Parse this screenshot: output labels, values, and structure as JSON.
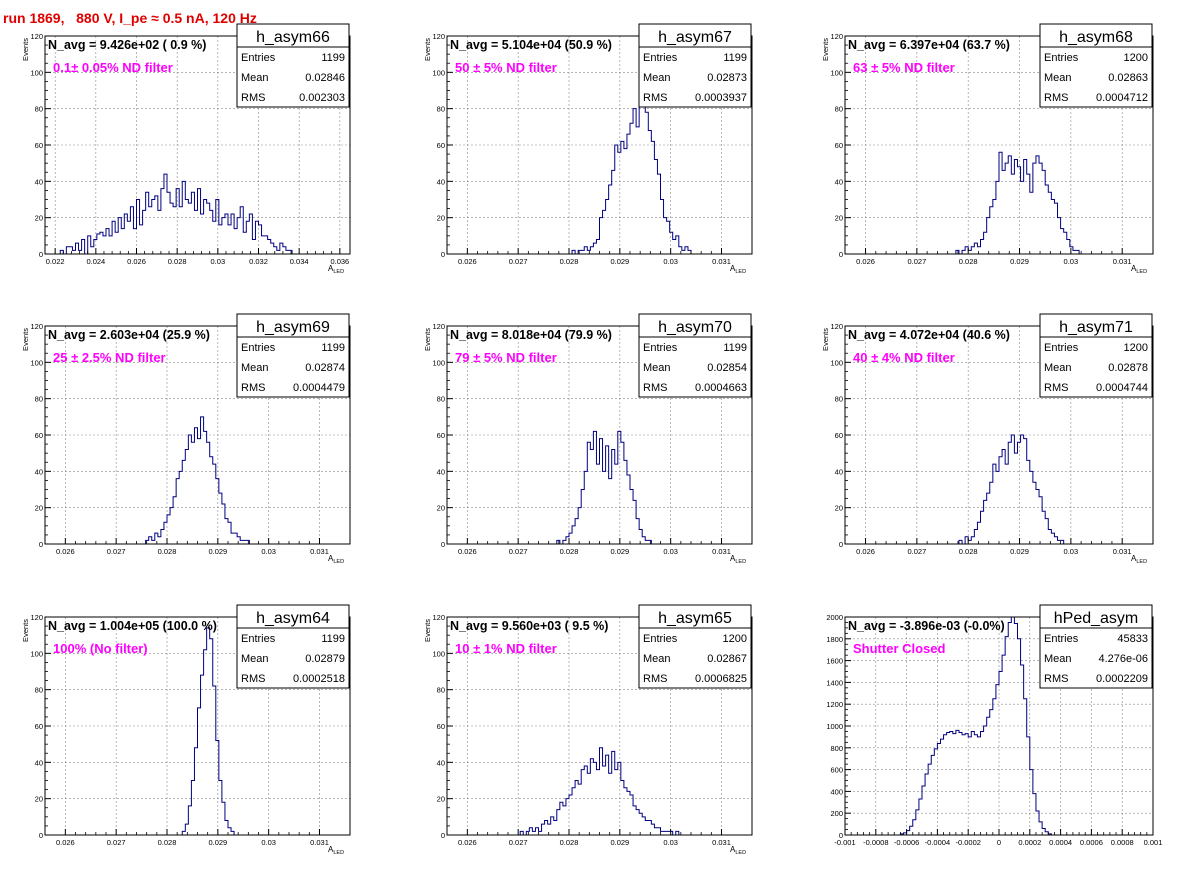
{
  "page_title": "run 1869,   880 V, I_pe ≈ 0.5 nA, 120 Hz",
  "colors": {
    "histogram": "#000080",
    "annotation": "#ff00ff",
    "title": "#e00000",
    "frame": "#000000"
  },
  "chart_data": [
    {
      "type": "bar",
      "name": "h_asym66",
      "title": "N_avg = 9.426e+02 ( 0.9 %)",
      "annotation": "0.1± 0.05% ND filter",
      "stats": {
        "Entries": "1199",
        "Mean": "0.02846",
        "RMS": "0.002303"
      },
      "xlabel": "A",
      "xlabel_sub": "LED",
      "ylabel": "Events",
      "xlim": [
        0.0215,
        0.0365
      ],
      "ylim": [
        0,
        120
      ],
      "xticks": [
        "0.022",
        "0.024",
        "0.026",
        "0.028",
        "0.03",
        "0.032",
        "0.034",
        "0.036"
      ],
      "xtick_values": [
        0.022,
        0.024,
        0.026,
        0.028,
        0.03,
        0.032,
        0.034,
        0.036
      ],
      "yticks": [
        "0",
        "20",
        "40",
        "60",
        "80",
        "100",
        "120"
      ],
      "ytick_values": [
        0,
        20,
        40,
        60,
        80,
        100,
        120
      ],
      "bin_start": 0.0215,
      "bin_width": 0.00015,
      "values": [
        0,
        0,
        0,
        0,
        0,
        2,
        0,
        4,
        4,
        2,
        6,
        2,
        8,
        0,
        10,
        4,
        8,
        11,
        12,
        10,
        14,
        10,
        18,
        12,
        20,
        14,
        22,
        18,
        26,
        14,
        30,
        16,
        24,
        34,
        26,
        30,
        32,
        24,
        36,
        44,
        34,
        28,
        26,
        36,
        26,
        40,
        30,
        28,
        34,
        24,
        36,
        22,
        30,
        28,
        24,
        18,
        30,
        16,
        20,
        22,
        16,
        22,
        14,
        20,
        26,
        12,
        18,
        22,
        8,
        18,
        16,
        10,
        10,
        8,
        6,
        4,
        2,
        6,
        4,
        2,
        2,
        0,
        0,
        0,
        0,
        0,
        0,
        0,
        0,
        0,
        0,
        0,
        0,
        0,
        0,
        0,
        0,
        0,
        0,
        0
      ]
    },
    {
      "type": "bar",
      "name": "h_asym67",
      "title": "N_avg = 5.104e+04 (50.9 %)",
      "annotation": "50 ± 5% ND filter",
      "stats": {
        "Entries": "1199",
        "Mean": "0.02873",
        "RMS": "0.0003937"
      },
      "xlabel": "A",
      "xlabel_sub": "LED",
      "ylabel": "Events",
      "xlim": [
        0.0256,
        0.0316
      ],
      "ylim": [
        0,
        120
      ],
      "xticks": [
        "0.026",
        "0.027",
        "0.028",
        "0.029",
        "0.03",
        "0.031"
      ],
      "xtick_values": [
        0.026,
        0.027,
        0.028,
        0.029,
        0.03,
        0.031
      ],
      "yticks": [
        "0",
        "20",
        "40",
        "60",
        "80",
        "100",
        "120"
      ],
      "ytick_values": [
        0,
        20,
        40,
        60,
        80,
        100,
        120
      ],
      "bin_start": 0.0256,
      "bin_width": 6e-05,
      "values": [
        0,
        0,
        0,
        0,
        0,
        0,
        0,
        0,
        0,
        0,
        0,
        0,
        0,
        0,
        0,
        0,
        0,
        0,
        0,
        0,
        0,
        0,
        0,
        0,
        0,
        0,
        0,
        0,
        0,
        0,
        0,
        0,
        0,
        0,
        0,
        0,
        0,
        0,
        0,
        0,
        0,
        2,
        0,
        2,
        2,
        4,
        2,
        4,
        6,
        8,
        20,
        24,
        30,
        38,
        46,
        60,
        56,
        62,
        58,
        66,
        72,
        80,
        70,
        86,
        100,
        78,
        68,
        62,
        52,
        44,
        30,
        20,
        18,
        12,
        8,
        10,
        4,
        2,
        4,
        2,
        0,
        0,
        0,
        0,
        0,
        0,
        0,
        0,
        0,
        0,
        0,
        0,
        0,
        0,
        0,
        0,
        0,
        0,
        0,
        0
      ]
    },
    {
      "type": "bar",
      "name": "h_asym68",
      "title": "N_avg = 6.397e+04 (63.7 %)",
      "annotation": "63 ± 5% ND filter",
      "stats": {
        "Entries": "1200",
        "Mean": "0.02863",
        "RMS": "0.0004712"
      },
      "xlabel": "A",
      "xlabel_sub": "LED",
      "ylabel": "Events",
      "xlim": [
        0.0256,
        0.0316
      ],
      "ylim": [
        0,
        120
      ],
      "xticks": [
        "0.026",
        "0.027",
        "0.028",
        "0.029",
        "0.03",
        "0.031"
      ],
      "xtick_values": [
        0.026,
        0.027,
        0.028,
        0.029,
        0.03,
        0.031
      ],
      "yticks": [
        "0",
        "20",
        "40",
        "60",
        "80",
        "100",
        "120"
      ],
      "ytick_values": [
        0,
        20,
        40,
        60,
        80,
        100,
        120
      ],
      "bin_start": 0.0256,
      "bin_width": 6e-05,
      "values": [
        0,
        0,
        0,
        0,
        0,
        0,
        0,
        0,
        0,
        0,
        0,
        0,
        0,
        0,
        0,
        0,
        0,
        0,
        0,
        0,
        0,
        0,
        0,
        0,
        0,
        0,
        0,
        0,
        0,
        0,
        0,
        0,
        0,
        0,
        0,
        0,
        2,
        0,
        2,
        4,
        2,
        4,
        6,
        4,
        8,
        12,
        20,
        26,
        30,
        40,
        56,
        46,
        50,
        54,
        44,
        52,
        48,
        40,
        52,
        44,
        34,
        50,
        54,
        50,
        46,
        38,
        34,
        30,
        28,
        20,
        14,
        12,
        8,
        4,
        2,
        2,
        0,
        0,
        0,
        0,
        0,
        0,
        0,
        0,
        0,
        0,
        0,
        0,
        0,
        0,
        0,
        0,
        0,
        0,
        0,
        0,
        0,
        0,
        0,
        0
      ]
    },
    {
      "type": "bar",
      "name": "h_asym69",
      "title": "N_avg = 2.603e+04 (25.9 %)",
      "annotation": "25 ± 2.5% ND filter",
      "stats": {
        "Entries": "1199",
        "Mean": "0.02874",
        "RMS": "0.0004479"
      },
      "xlabel": "A",
      "xlabel_sub": "LED",
      "ylabel": "Events",
      "xlim": [
        0.0256,
        0.0316
      ],
      "ylim": [
        0,
        120
      ],
      "xticks": [
        "0.026",
        "0.027",
        "0.028",
        "0.029",
        "0.03",
        "0.031"
      ],
      "xtick_values": [
        0.026,
        0.027,
        0.028,
        0.029,
        0.03,
        0.031
      ],
      "yticks": [
        "0",
        "20",
        "40",
        "60",
        "80",
        "100",
        "120"
      ],
      "ytick_values": [
        0,
        20,
        40,
        60,
        80,
        100,
        120
      ],
      "bin_start": 0.0256,
      "bin_width": 6e-05,
      "values": [
        0,
        0,
        0,
        0,
        0,
        0,
        0,
        0,
        0,
        0,
        0,
        0,
        0,
        0,
        0,
        0,
        0,
        0,
        0,
        0,
        0,
        0,
        0,
        0,
        0,
        0,
        0,
        0,
        0,
        0,
        0,
        0,
        0,
        2,
        4,
        2,
        6,
        4,
        8,
        12,
        16,
        20,
        26,
        36,
        40,
        46,
        52,
        60,
        56,
        64,
        58,
        70,
        62,
        56,
        48,
        44,
        36,
        28,
        22,
        14,
        12,
        6,
        6,
        4,
        2,
        2,
        2,
        0,
        0,
        0,
        0,
        0,
        0,
        0,
        0,
        0,
        0,
        0,
        0,
        0,
        0,
        0,
        0,
        0,
        0,
        0,
        0,
        0,
        0,
        0,
        0,
        0,
        0,
        0,
        0,
        0,
        0,
        0,
        0,
        0
      ]
    },
    {
      "type": "bar",
      "name": "h_asym70",
      "title": "N_avg = 8.018e+04 (79.9 %)",
      "annotation": "79 ± 5% ND filter",
      "stats": {
        "Entries": "1199",
        "Mean": "0.02854",
        "RMS": "0.0004663"
      },
      "xlabel": "A",
      "xlabel_sub": "LED",
      "ylabel": "Events",
      "xlim": [
        0.0256,
        0.0316
      ],
      "ylim": [
        0,
        120
      ],
      "xticks": [
        "0.026",
        "0.027",
        "0.028",
        "0.029",
        "0.03",
        "0.031"
      ],
      "xtick_values": [
        0.026,
        0.027,
        0.028,
        0.029,
        0.03,
        0.031
      ],
      "yticks": [
        "0",
        "20",
        "40",
        "60",
        "80",
        "100",
        "120"
      ],
      "ytick_values": [
        0,
        20,
        40,
        60,
        80,
        100,
        120
      ],
      "bin_start": 0.0256,
      "bin_width": 6e-05,
      "values": [
        0,
        0,
        0,
        0,
        0,
        0,
        0,
        0,
        0,
        0,
        0,
        0,
        0,
        0,
        0,
        0,
        0,
        0,
        0,
        0,
        0,
        0,
        0,
        0,
        0,
        0,
        0,
        0,
        0,
        0,
        0,
        0,
        0,
        0,
        0,
        0,
        2,
        0,
        2,
        4,
        6,
        10,
        14,
        20,
        30,
        40,
        56,
        52,
        62,
        44,
        58,
        40,
        54,
        36,
        52,
        44,
        62,
        56,
        46,
        38,
        30,
        24,
        14,
        8,
        4,
        2,
        2,
        0,
        0,
        0,
        0,
        0,
        0,
        0,
        0,
        0,
        0,
        0,
        0,
        0,
        0,
        0,
        0,
        0,
        0,
        0,
        0,
        0,
        0,
        0,
        0,
        0,
        0,
        0,
        0,
        0,
        0,
        0,
        0,
        0
      ]
    },
    {
      "type": "bar",
      "name": "h_asym71",
      "title": "N_avg = 4.072e+04 (40.6 %)",
      "annotation": "40 ± 4% ND filter",
      "stats": {
        "Entries": "1200",
        "Mean": "0.02878",
        "RMS": "0.0004744"
      },
      "xlabel": "A",
      "xlabel_sub": "LED",
      "ylabel": "Events",
      "xlim": [
        0.0256,
        0.0316
      ],
      "ylim": [
        0,
        120
      ],
      "xticks": [
        "0.026",
        "0.027",
        "0.028",
        "0.029",
        "0.03",
        "0.031"
      ],
      "xtick_values": [
        0.026,
        0.027,
        0.028,
        0.029,
        0.03,
        0.031
      ],
      "yticks": [
        "0",
        "20",
        "40",
        "60",
        "80",
        "100",
        "120"
      ],
      "ytick_values": [
        0,
        20,
        40,
        60,
        80,
        100,
        120
      ],
      "bin_start": 0.0256,
      "bin_width": 6e-05,
      "values": [
        0,
        0,
        0,
        0,
        0,
        0,
        0,
        0,
        0,
        0,
        0,
        0,
        0,
        0,
        0,
        0,
        0,
        0,
        0,
        0,
        0,
        0,
        0,
        0,
        0,
        0,
        0,
        0,
        0,
        0,
        0,
        0,
        0,
        0,
        0,
        0,
        0,
        2,
        0,
        4,
        2,
        4,
        8,
        12,
        18,
        24,
        28,
        34,
        44,
        40,
        48,
        52,
        44,
        56,
        60,
        50,
        56,
        60,
        58,
        46,
        40,
        34,
        30,
        26,
        18,
        14,
        8,
        6,
        4,
        2,
        2,
        0,
        0,
        0,
        0,
        0,
        0,
        0,
        0,
        0,
        0,
        0,
        0,
        0,
        0,
        0,
        0,
        0,
        0,
        0,
        0,
        0,
        0,
        0,
        0,
        0,
        0,
        0,
        0,
        0
      ]
    },
    {
      "type": "bar",
      "name": "h_asym64",
      "title": "N_avg = 1.004e+05 (100.0 %)",
      "annotation": "100% (No filter)",
      "stats": {
        "Entries": "1199",
        "Mean": "0.02879",
        "RMS": "0.0002518"
      },
      "xlabel": "A",
      "xlabel_sub": "LED",
      "ylabel": "Events",
      "xlim": [
        0.0256,
        0.0316
      ],
      "ylim": [
        0,
        120
      ],
      "xticks": [
        "0.026",
        "0.027",
        "0.028",
        "0.029",
        "0.03",
        "0.031"
      ],
      "xtick_values": [
        0.026,
        0.027,
        0.028,
        0.029,
        0.03,
        0.031
      ],
      "yticks": [
        "0",
        "20",
        "40",
        "60",
        "80",
        "100",
        "120"
      ],
      "ytick_values": [
        0,
        20,
        40,
        60,
        80,
        100,
        120
      ],
      "bin_start": 0.0256,
      "bin_width": 6e-05,
      "values": [
        0,
        0,
        0,
        0,
        0,
        0,
        0,
        0,
        0,
        0,
        0,
        0,
        0,
        0,
        0,
        0,
        0,
        0,
        0,
        0,
        0,
        0,
        0,
        0,
        0,
        0,
        0,
        0,
        0,
        0,
        0,
        0,
        0,
        0,
        0,
        0,
        0,
        0,
        0,
        0,
        0,
        0,
        0,
        0,
        0,
        2,
        6,
        16,
        30,
        48,
        70,
        88,
        102,
        114,
        108,
        82,
        52,
        30,
        18,
        8,
        4,
        2,
        0,
        0,
        0,
        0,
        0,
        0,
        0,
        0,
        0,
        0,
        0,
        0,
        0,
        0,
        0,
        0,
        0,
        0,
        0,
        0,
        0,
        0,
        0,
        0,
        0,
        0,
        0,
        0,
        0,
        0,
        0,
        0,
        0,
        0,
        0,
        0,
        0,
        0
      ]
    },
    {
      "type": "bar",
      "name": "h_asym65",
      "title": "N_avg = 9.560e+03 ( 9.5 %)",
      "annotation": "10 ± 1% ND filter",
      "stats": {
        "Entries": "1200",
        "Mean": "0.02867",
        "RMS": "0.0006825"
      },
      "xlabel": "A",
      "xlabel_sub": "LED",
      "ylabel": "Events",
      "xlim": [
        0.0256,
        0.0316
      ],
      "ylim": [
        0,
        120
      ],
      "xticks": [
        "0.026",
        "0.027",
        "0.028",
        "0.029",
        "0.03",
        "0.031"
      ],
      "xtick_values": [
        0.026,
        0.027,
        0.028,
        0.029,
        0.03,
        0.031
      ],
      "yticks": [
        "0",
        "20",
        "40",
        "60",
        "80",
        "100",
        "120"
      ],
      "ytick_values": [
        0,
        20,
        40,
        60,
        80,
        100,
        120
      ],
      "bin_start": 0.0256,
      "bin_width": 6e-05,
      "values": [
        0,
        0,
        0,
        0,
        0,
        0,
        0,
        0,
        0,
        0,
        0,
        0,
        0,
        0,
        0,
        0,
        0,
        0,
        0,
        0,
        0,
        0,
        0,
        0,
        2,
        0,
        2,
        4,
        2,
        4,
        2,
        6,
        8,
        6,
        10,
        8,
        14,
        18,
        16,
        20,
        22,
        26,
        30,
        28,
        36,
        38,
        34,
        42,
        40,
        36,
        48,
        38,
        44,
        34,
        46,
        36,
        40,
        30,
        26,
        24,
        22,
        16,
        14,
        12,
        10,
        8,
        8,
        6,
        4,
        4,
        2,
        2,
        2,
        2,
        0,
        2,
        0,
        0,
        0,
        0,
        0,
        0,
        0,
        0,
        0,
        0,
        0,
        0,
        0,
        0,
        0,
        0,
        0,
        0,
        0,
        0,
        0,
        0,
        0,
        0
      ]
    },
    {
      "type": "bar",
      "name": "hPed_asym",
      "title": "N_avg = -3.896e-03 (-0.0%)",
      "annotation": "Shutter Closed",
      "stats": {
        "Entries": "45833",
        "Mean": "4.276e-06",
        "RMS": "0.0002209"
      },
      "xlabel": "",
      "xlabel_sub": "",
      "ylabel": "",
      "xlim": [
        -0.001,
        0.001
      ],
      "ylim": [
        0,
        2000
      ],
      "xticks": [
        "-0.001",
        "-0.0008",
        "-0.0006",
        "-0.0004",
        "-0.0002",
        "0",
        "0.0002",
        "0.0004",
        "0.0006",
        "0.0008",
        "0.001"
      ],
      "xtick_values": [
        -0.001,
        -0.0008,
        -0.0006,
        -0.0004,
        -0.0002,
        0,
        0.0002,
        0.0004,
        0.0006,
        0.0008,
        0.001
      ],
      "yticks": [
        "0",
        "200",
        "400",
        "600",
        "800",
        "1000",
        "1200",
        "1400",
        "1600",
        "1800",
        "2000"
      ],
      "ytick_values": [
        0,
        200,
        400,
        600,
        800,
        1000,
        1200,
        1400,
        1600,
        1800,
        2000
      ],
      "bin_start": -0.001,
      "bin_width": 2e-05,
      "values": [
        0,
        0,
        0,
        0,
        0,
        0,
        0,
        0,
        0,
        0,
        0,
        0,
        0,
        0,
        0,
        0,
        0,
        0,
        10,
        20,
        40,
        80,
        140,
        230,
        330,
        450,
        560,
        650,
        730,
        790,
        840,
        880,
        920,
        940,
        950,
        930,
        960,
        940,
        920,
        930,
        900,
        950,
        920,
        900,
        950,
        1000,
        1080,
        1150,
        1250,
        1380,
        1500,
        1650,
        1820,
        1950,
        2000,
        1940,
        1800,
        1560,
        1250,
        900,
        600,
        380,
        220,
        120,
        60,
        30,
        10,
        0,
        0,
        0,
        0,
        0,
        0,
        0,
        0,
        0,
        0,
        0,
        0,
        0,
        0,
        0,
        0,
        0,
        0,
        0,
        0,
        0,
        0,
        0,
        0,
        0,
        0,
        0,
        0,
        0,
        0,
        0,
        0,
        0
      ]
    }
  ]
}
